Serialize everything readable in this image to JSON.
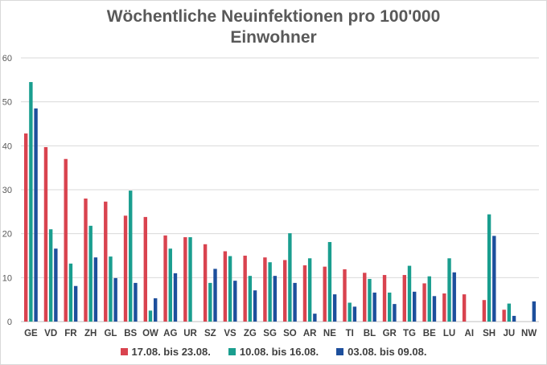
{
  "chart_data": {
    "type": "bar",
    "title_lines": [
      "Wöchentliche Neuinfektionen pro 100'000",
      "Einwohner"
    ],
    "categories": [
      "GE",
      "VD",
      "FR",
      "ZH",
      "GL",
      "BS",
      "OW",
      "AG",
      "UR",
      "SZ",
      "VS",
      "ZG",
      "SG",
      "SO",
      "AR",
      "NE",
      "TI",
      "BL",
      "GR",
      "TG",
      "BE",
      "LU",
      "AI",
      "SH",
      "JU",
      "NW"
    ],
    "series": [
      {
        "name": "17.08. bis 23.08.",
        "color": "#d9434f",
        "values": [
          42.8,
          39.7,
          37.0,
          28.0,
          27.3,
          24.1,
          23.8,
          19.6,
          19.2,
          17.6,
          16.0,
          15.0,
          14.6,
          14.0,
          12.8,
          12.5,
          11.9,
          11.1,
          10.6,
          10.6,
          8.7,
          6.4,
          6.2,
          4.9,
          2.7,
          0
        ]
      },
      {
        "name": "10.08. bis 16.08.",
        "color": "#1a9e8f",
        "values": [
          54.5,
          21.0,
          13.2,
          21.8,
          14.8,
          29.8,
          2.5,
          16.6,
          19.2,
          8.8,
          14.9,
          10.4,
          13.5,
          20.1,
          14.4,
          18.1,
          4.3,
          9.7,
          6.6,
          12.7,
          10.3,
          14.4,
          0,
          24.4,
          4.1,
          0
        ]
      },
      {
        "name": "03.08. bis 09.08.",
        "color": "#1d4f9c",
        "values": [
          48.5,
          16.6,
          8.1,
          14.6,
          9.9,
          8.8,
          5.3,
          11.0,
          0,
          12.0,
          9.3,
          7.1,
          10.4,
          8.8,
          1.8,
          6.2,
          3.4,
          6.6,
          4.0,
          6.8,
          5.8,
          11.2,
          0,
          19.5,
          1.3,
          4.6
        ]
      }
    ],
    "ylim": [
      0,
      60
    ],
    "yticks": [
      "0",
      "10",
      "20",
      "30",
      "40",
      "50",
      "60"
    ],
    "grid": true,
    "legend_position": "bottom"
  }
}
